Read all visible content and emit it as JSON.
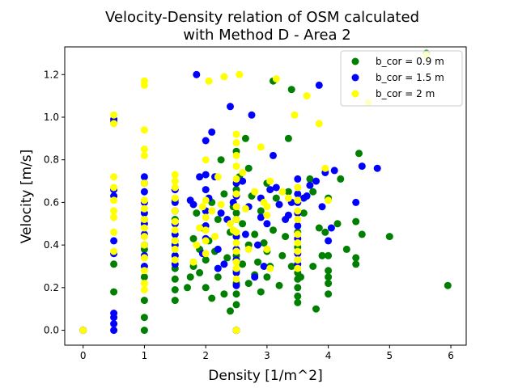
{
  "chart_data": {
    "type": "scatter",
    "title_line1": "Velocity-Density relation of OSM calculated",
    "title_line2": "with Method D - Area 2",
    "xlabel": "Density [1/m^2]",
    "ylabel": "Velocity [m/s]",
    "xlim": [
      -0.3,
      6.25
    ],
    "ylim": [
      -0.07,
      1.33
    ],
    "xticks": [
      "0",
      "1",
      "2",
      "3",
      "4",
      "5",
      "6"
    ],
    "yticks": [
      "0.0",
      "0.2",
      "0.4",
      "0.6",
      "0.8",
      "1.0",
      "1.2"
    ],
    "grid": false,
    "legend_position": "upper-right",
    "series": [
      {
        "name": "b_cor = 0.9 m",
        "color": "#008000",
        "points": [
          [
            0,
            0
          ],
          [
            0.5,
            0.98
          ],
          [
            0.5,
            0.31
          ],
          [
            0.5,
            0.18
          ],
          [
            1,
            0.0
          ],
          [
            1,
            0.06
          ],
          [
            1,
            0.14
          ],
          [
            1,
            0.25
          ],
          [
            1,
            0.38
          ],
          [
            1,
            0.52
          ],
          [
            1.5,
            0.14
          ],
          [
            1.5,
            0.19
          ],
          [
            1.5,
            0.24
          ],
          [
            1.5,
            0.29
          ],
          [
            1.5,
            0.35
          ],
          [
            1.5,
            0.42
          ],
          [
            1.5,
            0.52
          ],
          [
            1.5,
            0.61
          ],
          [
            1.7,
            0.2
          ],
          [
            1.75,
            0.25
          ],
          [
            1.8,
            0.3
          ],
          [
            1.8,
            0.43
          ],
          [
            1.85,
            0.55
          ],
          [
            1.9,
            0.27
          ],
          [
            1.9,
            0.38
          ],
          [
            1.95,
            0.48
          ],
          [
            2.0,
            0.2
          ],
          [
            2.0,
            0.33
          ],
          [
            2.05,
            0.42
          ],
          [
            2.1,
            0.15
          ],
          [
            2.1,
            0.6
          ],
          [
            2.15,
            0.37
          ],
          [
            2.2,
            0.25
          ],
          [
            2.2,
            0.52
          ],
          [
            2.25,
            0.8
          ],
          [
            2.3,
            0.17
          ],
          [
            2.3,
            0.64
          ],
          [
            2.35,
            0.34
          ],
          [
            2.4,
            0.09
          ],
          [
            2.4,
            0.46
          ],
          [
            2.45,
            0.58
          ],
          [
            2.5,
            0.0
          ],
          [
            2.5,
            0.12
          ],
          [
            2.5,
            0.17
          ],
          [
            2.5,
            0.22
          ],
          [
            2.5,
            0.28
          ],
          [
            2.5,
            0.35
          ],
          [
            2.5,
            0.44
          ],
          [
            2.5,
            0.55
          ],
          [
            2.5,
            0.66
          ],
          [
            2.5,
            0.84
          ],
          [
            2.55,
            0.72
          ],
          [
            2.6,
            0.31
          ],
          [
            2.6,
            0.5
          ],
          [
            2.65,
            0.9
          ],
          [
            2.7,
            0.22
          ],
          [
            2.7,
            0.4
          ],
          [
            2.7,
            0.76
          ],
          [
            2.75,
            0.63
          ],
          [
            2.8,
            0.26
          ],
          [
            2.8,
            0.45
          ],
          [
            2.85,
            0.32
          ],
          [
            2.9,
            0.18
          ],
          [
            2.9,
            0.56
          ],
          [
            2.95,
            0.41
          ],
          [
            3.0,
            0.25
          ],
          [
            3.0,
            0.37
          ],
          [
            3.0,
            0.69
          ],
          [
            3.05,
            0.3
          ],
          [
            3.1,
            0.47
          ],
          [
            3.1,
            1.17
          ],
          [
            3.15,
            0.62
          ],
          [
            3.2,
            0.21
          ],
          [
            3.25,
            0.35
          ],
          [
            3.3,
            0.44
          ],
          [
            3.35,
            0.9
          ],
          [
            3.35,
            0.65
          ],
          [
            3.4,
            1.13
          ],
          [
            3.4,
            0.3
          ],
          [
            3.5,
            0.13
          ],
          [
            3.5,
            0.16
          ],
          [
            3.5,
            0.2
          ],
          [
            3.5,
            0.24
          ],
          [
            3.5,
            0.27
          ],
          [
            3.5,
            0.33
          ],
          [
            3.5,
            0.39
          ],
          [
            3.5,
            0.46
          ],
          [
            3.55,
            0.25
          ],
          [
            3.6,
            0.55
          ],
          [
            3.7,
            0.71
          ],
          [
            3.75,
            0.3
          ],
          [
            3.75,
            0.65
          ],
          [
            3.8,
            0.1
          ],
          [
            3.85,
            0.48
          ],
          [
            3.9,
            0.35
          ],
          [
            3.95,
            0.46
          ],
          [
            4.0,
            0.17
          ],
          [
            4.0,
            0.22
          ],
          [
            4.0,
            0.25
          ],
          [
            4.0,
            0.28
          ],
          [
            4.0,
            0.35
          ],
          [
            4.0,
            0.62
          ],
          [
            4.15,
            0.5
          ],
          [
            4.2,
            0.71
          ],
          [
            4.3,
            0.38
          ],
          [
            4.45,
            0.31
          ],
          [
            4.45,
            0.34
          ],
          [
            4.45,
            0.51
          ],
          [
            4.5,
            0.83
          ],
          [
            4.55,
            0.45
          ],
          [
            5.0,
            0.44
          ],
          [
            5.95,
            0.21
          ],
          [
            5.6,
            1.3
          ]
        ]
      },
      {
        "name": "b_cor = 1.5 m",
        "color": "#0000ff",
        "points": [
          [
            0,
            0
          ],
          [
            0.5,
            0.0
          ],
          [
            0.5,
            0.03
          ],
          [
            0.5,
            0.06
          ],
          [
            0.5,
            0.08
          ],
          [
            0.5,
            0.36
          ],
          [
            0.5,
            0.42
          ],
          [
            0.5,
            0.63
          ],
          [
            0.5,
            0.66
          ],
          [
            0.5,
            0.99
          ],
          [
            1,
            0.3
          ],
          [
            1,
            0.35
          ],
          [
            1,
            0.4
          ],
          [
            1,
            0.45
          ],
          [
            1,
            0.5
          ],
          [
            1,
            0.55
          ],
          [
            1,
            0.6
          ],
          [
            1,
            0.65
          ],
          [
            1,
            0.69
          ],
          [
            1,
            0.72
          ],
          [
            1.5,
            0.31
          ],
          [
            1.5,
            0.35
          ],
          [
            1.5,
            0.4
          ],
          [
            1.5,
            0.45
          ],
          [
            1.5,
            0.5
          ],
          [
            1.5,
            0.56
          ],
          [
            1.5,
            0.6
          ],
          [
            1.5,
            0.66
          ],
          [
            1.75,
            0.61
          ],
          [
            1.8,
            0.59
          ],
          [
            1.85,
            1.2
          ],
          [
            1.9,
            0.72
          ],
          [
            1.95,
            0.36
          ],
          [
            2.0,
            0.43
          ],
          [
            2.0,
            0.49
          ],
          [
            2.0,
            0.56
          ],
          [
            2.0,
            0.66
          ],
          [
            2.0,
            0.73
          ],
          [
            2.0,
            0.89
          ],
          [
            2.05,
            0.62
          ],
          [
            2.1,
            0.93
          ],
          [
            2.15,
            0.72
          ],
          [
            2.2,
            0.29
          ],
          [
            2.2,
            0.38
          ],
          [
            2.25,
            0.55
          ],
          [
            2.3,
            0.31
          ],
          [
            2.35,
            0.52
          ],
          [
            2.4,
            1.05
          ],
          [
            2.45,
            0.6
          ],
          [
            2.5,
            0.0
          ],
          [
            2.5,
            0.21
          ],
          [
            2.5,
            0.27
          ],
          [
            2.5,
            0.33
          ],
          [
            2.5,
            0.38
          ],
          [
            2.5,
            0.44
          ],
          [
            2.5,
            0.52
          ],
          [
            2.5,
            0.58
          ],
          [
            2.5,
            0.63
          ],
          [
            2.5,
            0.69
          ],
          [
            2.6,
            0.7
          ],
          [
            2.65,
            0.45
          ],
          [
            2.7,
            0.58
          ],
          [
            2.75,
            1.01
          ],
          [
            2.8,
            0.25
          ],
          [
            2.85,
            0.4
          ],
          [
            2.9,
            0.53
          ],
          [
            2.9,
            0.62
          ],
          [
            2.95,
            0.3
          ],
          [
            3.0,
            0.5
          ],
          [
            3.05,
            0.66
          ],
          [
            3.1,
            0.82
          ],
          [
            3.15,
            0.67
          ],
          [
            3.2,
            0.59
          ],
          [
            3.3,
            0.52
          ],
          [
            3.35,
            0.54
          ],
          [
            3.4,
            0.6
          ],
          [
            3.5,
            0.31
          ],
          [
            3.5,
            0.36
          ],
          [
            3.5,
            0.43
          ],
          [
            3.5,
            0.49
          ],
          [
            3.5,
            0.55
          ],
          [
            3.5,
            0.6
          ],
          [
            3.5,
            0.64
          ],
          [
            3.5,
            0.71
          ],
          [
            3.6,
            0.62
          ],
          [
            3.65,
            0.63
          ],
          [
            3.7,
            0.68
          ],
          [
            3.8,
            0.7
          ],
          [
            3.85,
            1.15
          ],
          [
            3.9,
            0.58
          ],
          [
            3.95,
            0.74
          ],
          [
            4.0,
            0.42
          ],
          [
            4.05,
            0.48
          ],
          [
            4.1,
            0.75
          ],
          [
            4.45,
            0.6
          ],
          [
            4.55,
            0.77
          ],
          [
            4.8,
            0.76
          ]
        ]
      },
      {
        "name": "b_cor = 2 m",
        "color": "#ffff00",
        "points": [
          [
            0,
            0
          ],
          [
            0.5,
            0.37
          ],
          [
            0.5,
            0.46
          ],
          [
            0.5,
            0.53
          ],
          [
            0.5,
            0.56
          ],
          [
            0.5,
            0.61
          ],
          [
            0.5,
            0.67
          ],
          [
            0.5,
            0.72
          ],
          [
            0.5,
            0.97
          ],
          [
            0.5,
            1.01
          ],
          [
            1,
            0.19
          ],
          [
            1,
            0.22
          ],
          [
            1,
            0.28
          ],
          [
            1,
            0.34
          ],
          [
            1,
            0.4
          ],
          [
            1,
            0.44
          ],
          [
            1,
            0.48
          ],
          [
            1,
            0.52
          ],
          [
            1,
            0.57
          ],
          [
            1,
            0.61
          ],
          [
            1,
            0.69
          ],
          [
            1,
            0.82
          ],
          [
            1,
            0.85
          ],
          [
            1,
            0.94
          ],
          [
            1,
            1.15
          ],
          [
            1,
            1.17
          ],
          [
            1.5,
            0.33
          ],
          [
            1.5,
            0.38
          ],
          [
            1.5,
            0.42
          ],
          [
            1.5,
            0.47
          ],
          [
            1.5,
            0.51
          ],
          [
            1.5,
            0.56
          ],
          [
            1.5,
            0.62
          ],
          [
            1.5,
            0.67
          ],
          [
            1.5,
            0.7
          ],
          [
            1.5,
            0.73
          ],
          [
            1.8,
            0.32
          ],
          [
            1.85,
            0.4
          ],
          [
            1.9,
            0.48
          ],
          [
            1.95,
            0.58
          ],
          [
            2.0,
            0.36
          ],
          [
            2.0,
            0.42
          ],
          [
            2.0,
            0.47
          ],
          [
            2.0,
            0.53
          ],
          [
            2.0,
            0.61
          ],
          [
            2.0,
            0.8
          ],
          [
            2.05,
            1.17
          ],
          [
            2.1,
            0.56
          ],
          [
            2.15,
            0.44
          ],
          [
            2.2,
            0.72
          ],
          [
            2.25,
            0.59
          ],
          [
            2.3,
            1.19
          ],
          [
            2.4,
            0.5
          ],
          [
            2.45,
            0.47
          ],
          [
            2.5,
            0.0
          ],
          [
            2.5,
            0.24
          ],
          [
            2.5,
            0.29
          ],
          [
            2.5,
            0.32
          ],
          [
            2.5,
            0.37
          ],
          [
            2.5,
            0.41
          ],
          [
            2.5,
            0.46
          ],
          [
            2.5,
            0.52
          ],
          [
            2.5,
            0.58
          ],
          [
            2.5,
            0.64
          ],
          [
            2.5,
            0.71
          ],
          [
            2.5,
            0.77
          ],
          [
            2.5,
            0.82
          ],
          [
            2.5,
            0.88
          ],
          [
            2.5,
            0.92
          ],
          [
            2.55,
            1.2
          ],
          [
            2.6,
            0.74
          ],
          [
            2.65,
            0.57
          ],
          [
            2.7,
            0.38
          ],
          [
            2.8,
            0.65
          ],
          [
            2.9,
            0.86
          ],
          [
            2.95,
            0.6
          ],
          [
            3.0,
            0.38
          ],
          [
            3.0,
            0.54
          ],
          [
            3.0,
            0.58
          ],
          [
            3.05,
            0.29
          ],
          [
            3.05,
            0.7
          ],
          [
            3.15,
            1.18
          ],
          [
            3.25,
            0.65
          ],
          [
            3.35,
            0.62
          ],
          [
            3.45,
            1.01
          ],
          [
            3.5,
            0.29
          ],
          [
            3.5,
            0.33
          ],
          [
            3.5,
            0.37
          ],
          [
            3.5,
            0.41
          ],
          [
            3.5,
            0.45
          ],
          [
            3.5,
            0.52
          ],
          [
            3.5,
            0.56
          ],
          [
            3.5,
            0.61
          ],
          [
            3.5,
            0.67
          ],
          [
            3.65,
            1.1
          ],
          [
            3.85,
            0.97
          ],
          [
            3.95,
            0.76
          ],
          [
            4.0,
            0.61
          ],
          [
            4.65,
            1.07
          ],
          [
            5.6,
            1.29
          ]
        ]
      }
    ]
  }
}
